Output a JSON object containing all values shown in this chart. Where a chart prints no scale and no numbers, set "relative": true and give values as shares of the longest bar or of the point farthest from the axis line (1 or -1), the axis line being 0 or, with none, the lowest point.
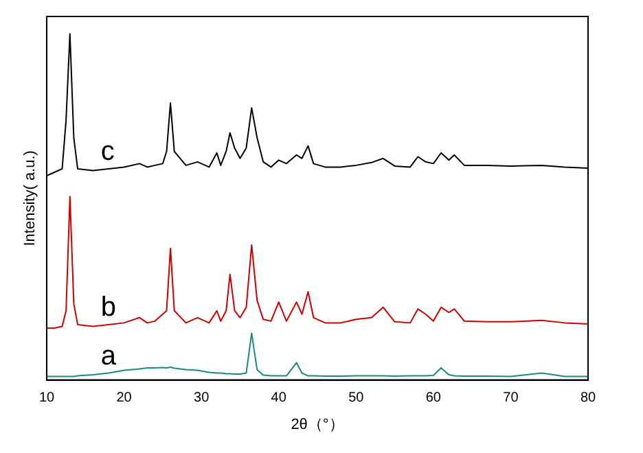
{
  "chart_data": {
    "type": "line",
    "xlabel": "2θ（°）",
    "ylabel": "Intensity( a.u.)",
    "relative": true,
    "xlim": [
      10,
      80
    ],
    "xticks": [
      10,
      20,
      30,
      40,
      50,
      60,
      70,
      80
    ],
    "grid": false,
    "legend": false,
    "marker": "none",
    "line_style": "solid",
    "x": [
      10,
      11,
      12,
      12.5,
      13,
      13.5,
      14,
      16,
      18,
      20,
      22,
      23,
      24,
      25,
      25.5,
      26,
      26.5,
      28,
      29.5,
      31,
      32,
      32.5,
      33.2,
      33.7,
      34.3,
      35,
      35.8,
      36.5,
      37.2,
      38,
      39,
      40,
      41,
      42.3,
      43,
      43.8,
      44.5,
      46,
      48,
      50,
      52,
      53.5,
      55,
      57,
      58,
      59,
      60,
      61,
      62,
      62.7,
      64,
      67,
      70,
      74,
      77,
      80
    ],
    "series": [
      {
        "name": "a",
        "color": "#1a8a7a",
        "values": [
          0.01,
          0.01,
          0.01,
          0.01,
          0.01,
          0.01,
          0.012,
          0.015,
          0.02,
          0.028,
          0.032,
          0.035,
          0.035,
          0.036,
          0.035,
          0.037,
          0.034,
          0.03,
          0.028,
          0.022,
          0.02,
          0.02,
          0.018,
          0.018,
          0.017,
          0.017,
          0.02,
          0.135,
          0.03,
          0.014,
          0.012,
          0.012,
          0.012,
          0.05,
          0.02,
          0.012,
          0.012,
          0.011,
          0.011,
          0.012,
          0.012,
          0.012,
          0.011,
          0.012,
          0.012,
          0.012,
          0.013,
          0.035,
          0.015,
          0.012,
          0.011,
          0.011,
          0.01,
          0.02,
          0.01,
          0.01
        ]
      },
      {
        "name": "b",
        "color": "#cc0000",
        "values": [
          0.15,
          0.15,
          0.155,
          0.2,
          0.53,
          0.22,
          0.16,
          0.155,
          0.16,
          0.165,
          0.18,
          0.165,
          0.17,
          0.19,
          0.2,
          0.38,
          0.2,
          0.165,
          0.18,
          0.165,
          0.2,
          0.17,
          0.2,
          0.305,
          0.2,
          0.18,
          0.21,
          0.39,
          0.23,
          0.175,
          0.17,
          0.225,
          0.17,
          0.225,
          0.19,
          0.255,
          0.18,
          0.165,
          0.165,
          0.175,
          0.18,
          0.21,
          0.168,
          0.165,
          0.205,
          0.19,
          0.17,
          0.21,
          0.195,
          0.205,
          0.17,
          0.168,
          0.168,
          0.172,
          0.165,
          0.162
        ]
      },
      {
        "name": "c",
        "color": "#000000",
        "values": [
          0.59,
          0.6,
          0.61,
          0.75,
          1,
          0.7,
          0.61,
          0.605,
          0.61,
          0.615,
          0.625,
          0.615,
          0.62,
          0.625,
          0.66,
          0.8,
          0.66,
          0.62,
          0.63,
          0.615,
          0.656,
          0.62,
          0.66,
          0.714,
          0.67,
          0.64,
          0.67,
          0.786,
          0.7,
          0.63,
          0.615,
          0.635,
          0.625,
          0.65,
          0.64,
          0.676,
          0.625,
          0.615,
          0.615,
          0.62,
          0.628,
          0.64,
          0.618,
          0.615,
          0.645,
          0.63,
          0.625,
          0.656,
          0.635,
          0.65,
          0.62,
          0.62,
          0.618,
          0.62,
          0.615,
          0.612
        ]
      }
    ]
  }
}
